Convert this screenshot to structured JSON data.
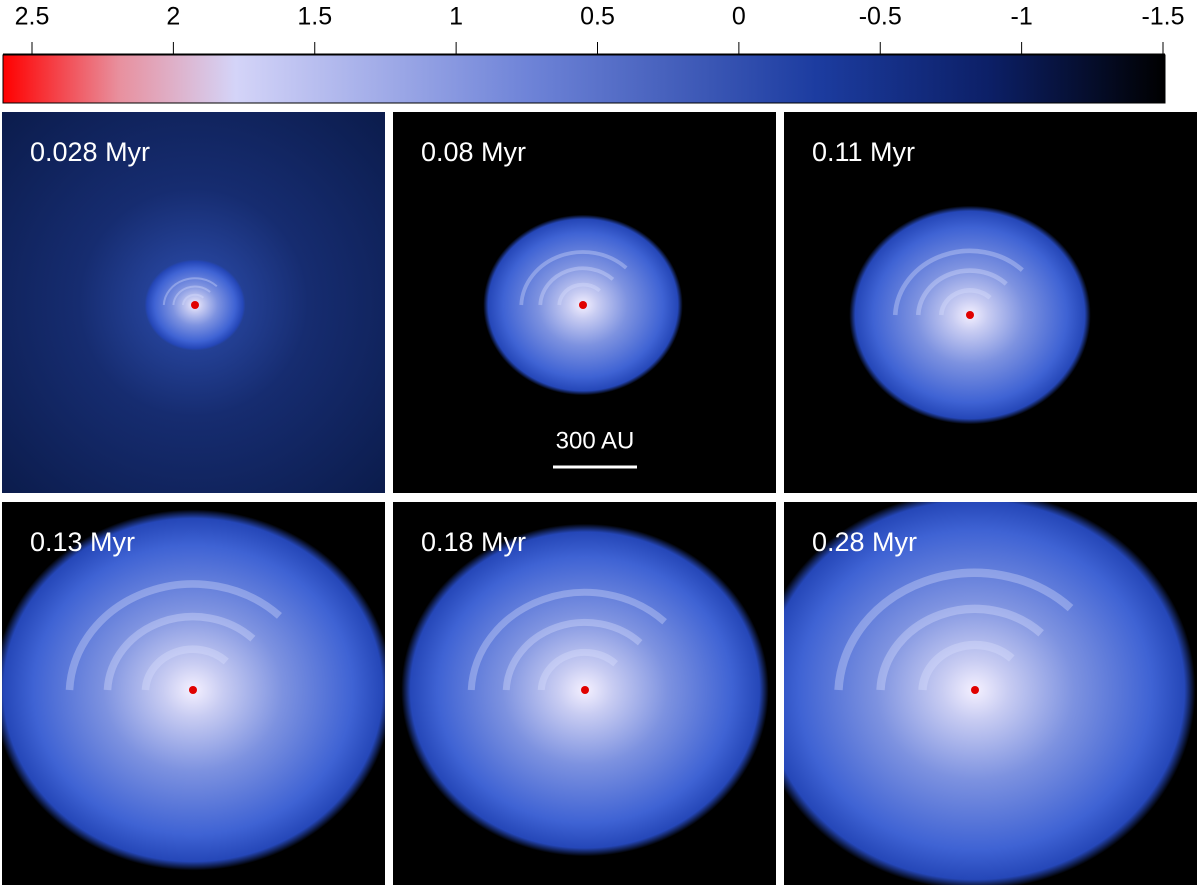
{
  "colorbar": {
    "lim": [
      2.5,
      -1.5
    ],
    "ticks": [
      2.5,
      2,
      1.5,
      1,
      0.5,
      0,
      -0.5,
      -1,
      -1.5
    ]
  },
  "panels": [
    {
      "label": "0.028 Myr"
    },
    {
      "label": "0.08 Myr"
    },
    {
      "label": "0.11 Myr"
    },
    {
      "label": "0.13 Myr"
    },
    {
      "label": "0.18 Myr"
    },
    {
      "label": "0.28 Myr"
    }
  ],
  "scale_bar": {
    "label": "300 AU"
  }
}
